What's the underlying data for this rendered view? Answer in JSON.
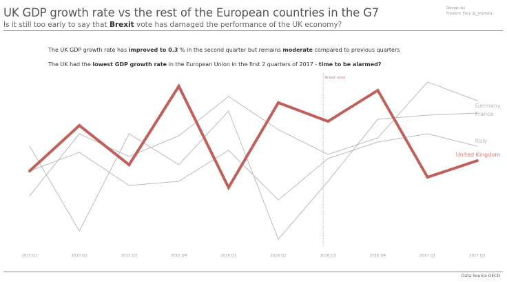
{
  "header": {
    "title": "UK GDP growth rate vs the rest of the European countries in the G7",
    "subtitle": {
      "pre": "Is it still too early to say that ",
      "bold": "Brexit",
      "post": " vote has damaged the performance of the UK economy?"
    },
    "credit_line1": "Design by",
    "credit_line2": "Frederic Fery @_mydata"
  },
  "notes": [
    {
      "a": "The UK GDP growth rate has ",
      "b": "improved to 0.3",
      "c": " % in the second quarter but remains ",
      "d": "moderate",
      "e": " compared to previous quarters"
    },
    {
      "a": "The UK had the ",
      "b": "lowest GDP growth rate",
      "c": " in the European Union in the first 2 quarters of 2017 - ",
      "d": "time to be alarmed?",
      "e": ""
    }
  ],
  "footer": {
    "source": "Data Source OECD"
  },
  "chart_data": {
    "type": "line",
    "categories": [
      "2015 Q1",
      "2015 Q2",
      "2015 Q3",
      "2015 Q4",
      "2016 Q1",
      "2016 Q2",
      "2016 Q3",
      "2016 Q4",
      "2017 Q1",
      "2017 Q2"
    ],
    "series": [
      {
        "name": "Germany",
        "color": "#bbbbbb",
        "values": [
          0.13,
          0.43,
          0.32,
          0.42,
          0.61,
          0.45,
          0.33,
          0.41,
          0.68,
          0.59
        ]
      },
      {
        "name": "France",
        "color": "#bbbbbb",
        "values": [
          0.37,
          -0.04,
          0.43,
          0.28,
          0.54,
          -0.08,
          0.2,
          0.5,
          0.52,
          0.53
        ]
      },
      {
        "name": "Italy",
        "color": "#bbbbbb",
        "values": [
          0.25,
          0.34,
          0.18,
          0.2,
          0.35,
          0.11,
          0.31,
          0.39,
          0.43,
          0.37
        ]
      },
      {
        "name": "United Kingdom",
        "color": "#c0605a",
        "values": [
          0.25,
          0.47,
          0.28,
          0.66,
          0.17,
          0.58,
          0.49,
          0.64,
          0.22,
          0.3
        ]
      }
    ],
    "annotation": {
      "label": "Brexit vote",
      "at": "2016 Q3",
      "color": "#c77a80"
    },
    "grid": false,
    "y_axis_shown": false,
    "legend": "inline-right"
  }
}
